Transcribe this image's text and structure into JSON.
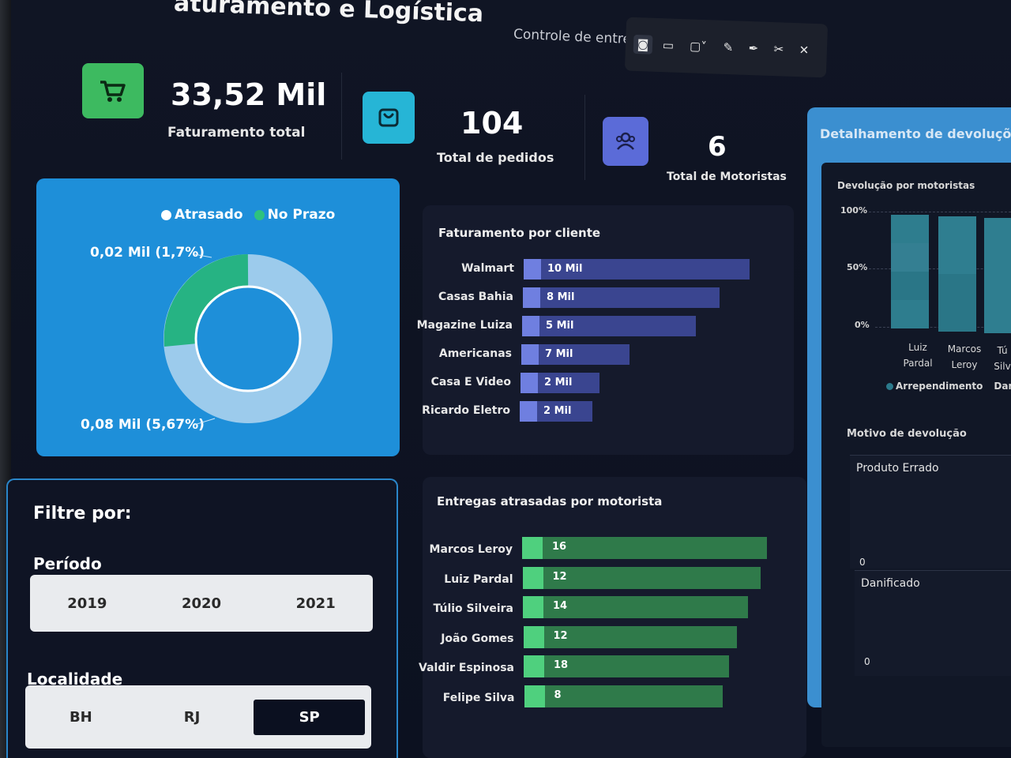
{
  "header": {
    "title": "aturamento e Logística",
    "subtitle": "Controle de entregas e devoluções",
    "tools": [
      {
        "icon": "screenshot-icon",
        "glyph": "◙"
      },
      {
        "icon": "video-icon",
        "glyph": "▭"
      },
      {
        "icon": "window-select-icon",
        "glyph": "▢˅"
      },
      {
        "icon": "edit-icon",
        "glyph": "✎"
      },
      {
        "icon": "pen-icon",
        "glyph": "✒"
      },
      {
        "icon": "scissors-icon",
        "glyph": "✂"
      },
      {
        "icon": "close-icon",
        "glyph": "✕"
      }
    ]
  },
  "kpis": {
    "revenue": {
      "value": "33,52 Mil",
      "label": "Faturamento total",
      "color": "#3dba60"
    },
    "orders": {
      "value": "104",
      "label": "Total de pedidos",
      "color": "#26b5d6"
    },
    "drivers": {
      "value": "6",
      "label": "Total de Motoristas",
      "color": "#5b6bd8"
    }
  },
  "donut": {
    "legend": [
      {
        "label": "Atrasado",
        "color": "#ffffff"
      },
      {
        "label": "No Prazo",
        "color": "#2ec27e"
      }
    ],
    "label_top": "0,02 Mil (1,7%)",
    "label_bottom": "0,08 Mil (5,67%)"
  },
  "revenue_by_client": {
    "title": "Faturamento por cliente",
    "rows": [
      {
        "name": "Walmart",
        "value_label": "10 Mil",
        "value": 10,
        "bar": 1.0
      },
      {
        "name": "Casas Bahia",
        "value_label": "8 Mil",
        "value": 8,
        "bar": 0.87
      },
      {
        "name": "Magazine Luiza",
        "value_label": "5 Mil",
        "value": 5,
        "bar": 0.77
      },
      {
        "name": "Americanas",
        "value_label": "7 Mil",
        "value": 7,
        "bar": 0.48
      },
      {
        "name": "Casa E Video",
        "value_label": "2 Mil",
        "value": 2,
        "bar": 0.35
      },
      {
        "name": "Ricardo Eletro",
        "value_label": "2 Mil",
        "value": 2,
        "bar": 0.32
      }
    ]
  },
  "late_by_driver": {
    "title": "Entregas atrasadas por motorista",
    "rows": [
      {
        "name": "Marcos Leroy",
        "value": 16
      },
      {
        "name": "Luiz Pardal",
        "value": 12
      },
      {
        "name": "Túlio Silveira",
        "value": 14
      },
      {
        "name": "João Gomes",
        "value": 12
      },
      {
        "name": "Valdir Espinosa",
        "value": 18
      },
      {
        "name": "Felipe Silva",
        "value": 8
      }
    ]
  },
  "filters": {
    "title": "Filtre por:",
    "period_label": "Período",
    "periods": [
      "2019",
      "2020",
      "2021"
    ],
    "location_label": "Localidade",
    "locations": [
      "BH",
      "RJ",
      "SP"
    ],
    "selected_location": "SP"
  },
  "returns": {
    "title": "Detalhamento de devoluções",
    "by_driver_title": "Devolução por motoristas",
    "ticks": [
      "100%",
      "50%",
      "0%"
    ],
    "drivers": [
      "Luiz\nPardal",
      "Marcos\nLeroy",
      "Tú\nSilv"
    ],
    "legend": [
      {
        "label": "Arrependimento",
        "color": "#2b7a8c"
      },
      {
        "label": "Danifica",
        "color": "#3a8fa5"
      }
    ],
    "reason_title": "Motivo de devolução",
    "reasons": [
      {
        "label": "Produto Errado",
        "zero": "0"
      },
      {
        "label": "Danificado",
        "zero": "0"
      }
    ]
  }
}
